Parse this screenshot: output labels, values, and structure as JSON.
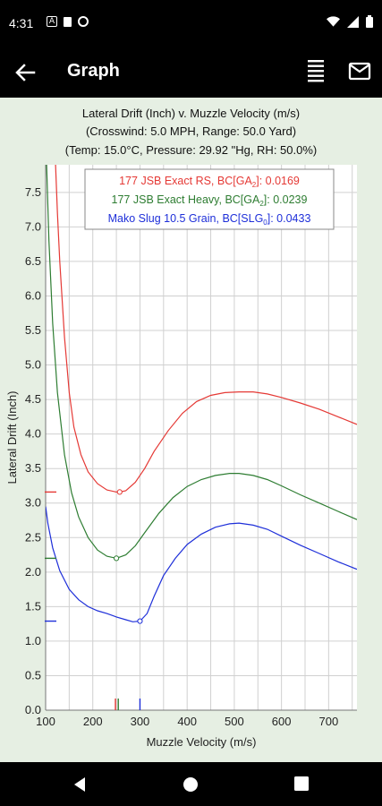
{
  "status_bar": {
    "time": "4:31",
    "left_icons": [
      "a-icon",
      "sd-card-icon",
      "vpn-icon"
    ],
    "right_icons": [
      "wifi-icon",
      "signal-icon",
      "battery-icon"
    ]
  },
  "app_bar": {
    "title": "Graph",
    "back_icon": "arrow-left-icon",
    "menu_icon": "menu-lines-icon",
    "mail_icon": "mail-icon"
  },
  "chart_data": {
    "type": "line",
    "title_lines": [
      "Lateral Drift (Inch) v. Muzzle Velocity (m/s)",
      "(Crosswind: 5.0 MPH, Range: 50.0 Yard)",
      "(Temp: 15.0°C, Pressure: 29.92 \"Hg, RH: 50.0%)"
    ],
    "xlabel": "Muzzle Velocity (m/s)",
    "ylabel": "Lateral Drift (Inch)",
    "xlim": [
      100,
      760
    ],
    "ylim": [
      0,
      7.9
    ],
    "xticks": [
      "100",
      "200",
      "300",
      "400",
      "500",
      "600",
      "700"
    ],
    "yticks": [
      "0.0",
      "0.5",
      "1.0",
      "1.5",
      "2.0",
      "2.5",
      "3.0",
      "3.5",
      "4.0",
      "4.5",
      "5.0",
      "5.5",
      "6.0",
      "6.5",
      "7.0",
      "7.5"
    ],
    "grid": true,
    "legend_position": "top",
    "background": "#ffffff",
    "series": [
      {
        "name": "177 JSB Exact RS, BC[GA",
        "name_sub": "2",
        "name_suffix": "]: 0.0169",
        "color": "#e53935",
        "marker": {
          "x": 257,
          "y": 3.16
        },
        "points": [
          [
            121,
            7.9
          ],
          [
            125,
            7.2
          ],
          [
            130,
            6.5
          ],
          [
            140,
            5.4
          ],
          [
            150,
            4.6
          ],
          [
            160,
            4.1
          ],
          [
            175,
            3.7
          ],
          [
            190,
            3.45
          ],
          [
            210,
            3.28
          ],
          [
            230,
            3.19
          ],
          [
            250,
            3.16
          ],
          [
            257,
            3.16
          ],
          [
            270,
            3.18
          ],
          [
            290,
            3.3
          ],
          [
            310,
            3.5
          ],
          [
            330,
            3.75
          ],
          [
            360,
            4.05
          ],
          [
            390,
            4.3
          ],
          [
            420,
            4.47
          ],
          [
            450,
            4.56
          ],
          [
            480,
            4.6
          ],
          [
            510,
            4.61
          ],
          [
            540,
            4.61
          ],
          [
            570,
            4.58
          ],
          [
            600,
            4.53
          ],
          [
            640,
            4.45
          ],
          [
            680,
            4.36
          ],
          [
            720,
            4.25
          ],
          [
            760,
            4.14
          ]
        ]
      },
      {
        "name": "177 JSB Exact Heavy, BC[GA",
        "name_sub": "2",
        "name_suffix": "]: 0.0239",
        "color": "#2e7d32",
        "marker": {
          "x": 250,
          "y": 2.2
        },
        "points": [
          [
            102,
            7.9
          ],
          [
            107,
            6.8
          ],
          [
            115,
            5.6
          ],
          [
            125,
            4.6
          ],
          [
            140,
            3.7
          ],
          [
            155,
            3.15
          ],
          [
            170,
            2.8
          ],
          [
            190,
            2.5
          ],
          [
            210,
            2.32
          ],
          [
            230,
            2.23
          ],
          [
            250,
            2.2
          ],
          [
            270,
            2.25
          ],
          [
            290,
            2.38
          ],
          [
            310,
            2.57
          ],
          [
            340,
            2.85
          ],
          [
            370,
            3.08
          ],
          [
            400,
            3.24
          ],
          [
            430,
            3.34
          ],
          [
            460,
            3.4
          ],
          [
            490,
            3.43
          ],
          [
            510,
            3.43
          ],
          [
            540,
            3.4
          ],
          [
            570,
            3.34
          ],
          [
            600,
            3.25
          ],
          [
            640,
            3.12
          ],
          [
            680,
            3.0
          ],
          [
            720,
            2.88
          ],
          [
            760,
            2.76
          ]
        ]
      },
      {
        "name": "Mako Slug 10.5 Grain, BC[SLG",
        "name_sub": "0",
        "name_suffix": "]: 0.0433",
        "color": "#1e2fd9",
        "marker": {
          "x": 300,
          "y": 1.29
        },
        "points": [
          [
            100,
            2.95
          ],
          [
            105,
            2.7
          ],
          [
            115,
            2.35
          ],
          [
            130,
            2.02
          ],
          [
            150,
            1.75
          ],
          [
            170,
            1.6
          ],
          [
            190,
            1.5
          ],
          [
            210,
            1.44
          ],
          [
            230,
            1.4
          ],
          [
            250,
            1.35
          ],
          [
            270,
            1.31
          ],
          [
            285,
            1.28
          ],
          [
            300,
            1.29
          ],
          [
            315,
            1.4
          ],
          [
            330,
            1.65
          ],
          [
            350,
            1.95
          ],
          [
            375,
            2.2
          ],
          [
            400,
            2.4
          ],
          [
            430,
            2.55
          ],
          [
            460,
            2.65
          ],
          [
            490,
            2.7
          ],
          [
            510,
            2.71
          ],
          [
            540,
            2.68
          ],
          [
            570,
            2.62
          ],
          [
            600,
            2.52
          ],
          [
            640,
            2.39
          ],
          [
            680,
            2.27
          ],
          [
            720,
            2.15
          ],
          [
            760,
            2.04
          ]
        ]
      }
    ],
    "y_markers": [
      {
        "y": 3.16,
        "color": "#e53935"
      },
      {
        "y": 2.2,
        "color": "#2e7d32"
      },
      {
        "y": 1.29,
        "color": "#1e2fd9"
      }
    ],
    "x_markers": [
      {
        "x": 248,
        "color": "#e53935"
      },
      {
        "x": 254,
        "color": "#2e7d32"
      },
      {
        "x": 300,
        "color": "#1e2fd9"
      }
    ]
  },
  "nav": {
    "back": "nav-back-icon",
    "home": "nav-home-icon",
    "recents": "nav-recents-icon"
  }
}
